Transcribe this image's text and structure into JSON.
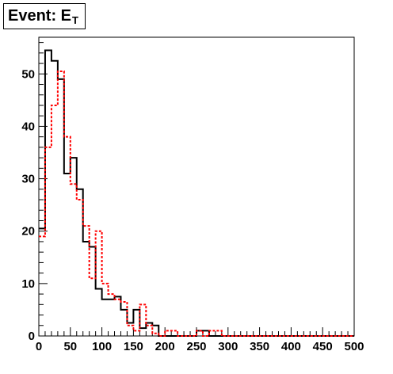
{
  "chart_data": {
    "type": "histogram",
    "title": "Event: E",
    "title_subscript": "T",
    "x_bins_start": 0,
    "bin_width": 10,
    "xlim": [
      0,
      500
    ],
    "ylim": [
      0,
      57
    ],
    "x_ticks": [
      "0",
      "50",
      "100",
      "150",
      "200",
      "250",
      "300",
      "350",
      "400",
      "450",
      "500"
    ],
    "y_ticks": [
      "0",
      "10",
      "20",
      "30",
      "40",
      "50"
    ],
    "grid": false,
    "series": [
      {
        "style": "solid",
        "color": "#000000",
        "values": [
          20.5,
          54.5,
          52.5,
          49,
          31,
          34,
          28,
          18,
          17,
          9,
          7,
          7,
          7.5,
          5,
          2.5,
          5,
          1.5,
          2.5,
          2,
          0,
          0,
          0,
          0,
          0,
          0,
          1,
          1,
          0,
          0,
          0,
          0,
          0,
          0,
          0,
          0,
          0,
          0,
          0,
          0,
          0,
          0,
          0,
          0,
          0,
          0,
          0,
          0,
          0,
          0,
          0
        ]
      },
      {
        "style": "dashed",
        "color": "#ff0000",
        "values": [
          19,
          36,
          44,
          50.5,
          38,
          29,
          26,
          21,
          11,
          20,
          10,
          8,
          7,
          6.5,
          2,
          1,
          6,
          2,
          0.5,
          0,
          1,
          1,
          0,
          0,
          0,
          1,
          0,
          1,
          1,
          0,
          0,
          0,
          0,
          0,
          0,
          0,
          0,
          0,
          0,
          0,
          0,
          0,
          0,
          0,
          0,
          0,
          0,
          0,
          0,
          0
        ]
      }
    ]
  }
}
